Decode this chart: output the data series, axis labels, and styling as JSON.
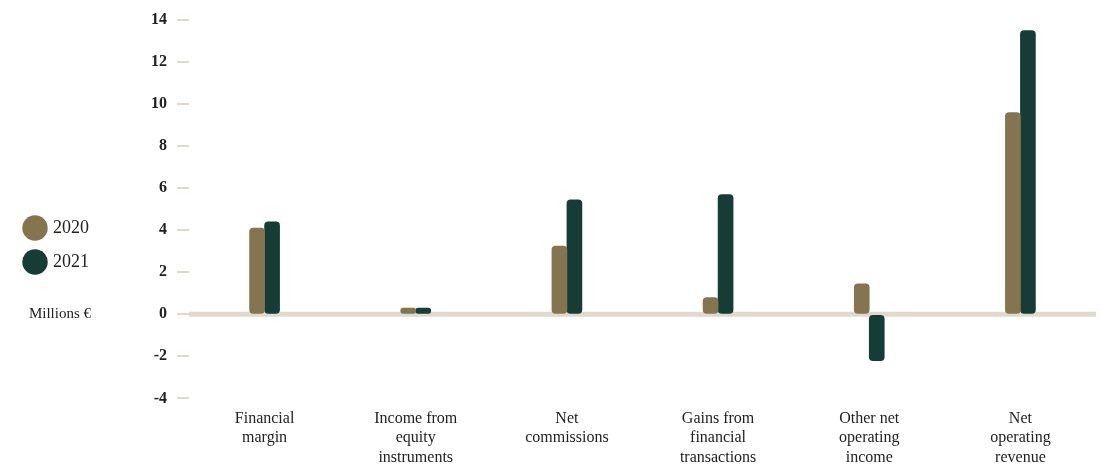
{
  "chart_data": {
    "type": "bar",
    "ylabel": "Millions €",
    "categories": [
      "Financial margin",
      "Income from equity instruments",
      "Net commissions",
      "Gains from financial transactions",
      "Other net operating income",
      "Net operating revenue"
    ],
    "series": [
      {
        "name": "2020",
        "color": "#85754e",
        "values": [
          4.1,
          0.3,
          3.25,
          0.8,
          1.45,
          9.6
        ]
      },
      {
        "name": "2021",
        "color": "#163d35",
        "values": [
          4.4,
          0.3,
          5.45,
          5.7,
          -2.2,
          13.5
        ]
      }
    ],
    "ylim": [
      -4,
      14
    ],
    "ref_lines": [
      {
        "axis": "y",
        "value": 0,
        "color": "#dfdacd"
      }
    ],
    "yticks": [
      -4,
      -2,
      0,
      2,
      4,
      6,
      8,
      10,
      12,
      14
    ],
    "grid": false,
    "legend": "left"
  }
}
